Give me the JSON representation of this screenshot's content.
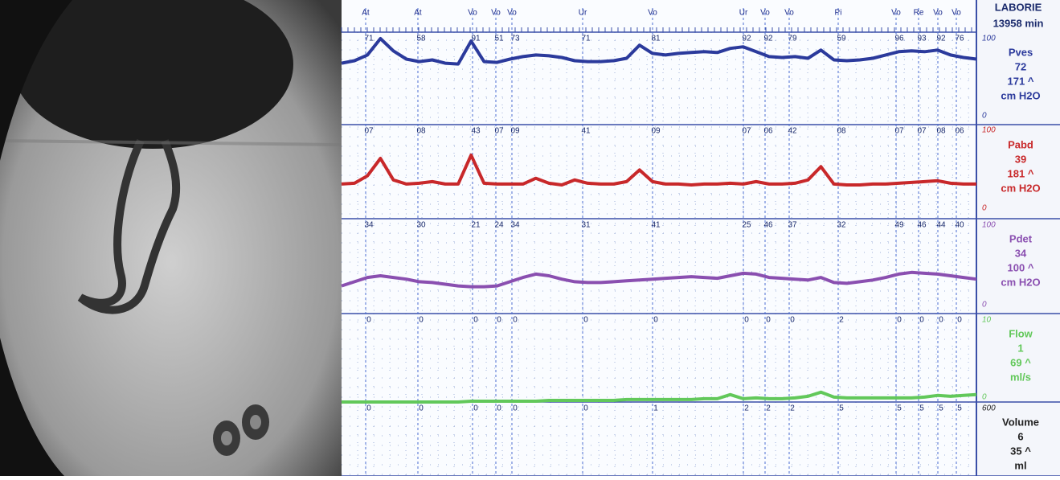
{
  "header": {
    "title": "LABORIE",
    "time": "13958 min"
  },
  "events": [
    "At",
    "At",
    "Vo",
    "Vo",
    "Vo",
    "Ur",
    "Vo",
    "Ur",
    "Vo",
    "Vo",
    "Pi",
    "Vo",
    "Re",
    "Vo",
    "Vo"
  ],
  "channels": [
    {
      "name": "Pves",
      "value": "72",
      "max": "171 ^",
      "unit": "cm H2O",
      "color": "#2b3a9c",
      "scale_top": 100,
      "scale_bottom": 0,
      "event_values": [
        "71",
        "58",
        "91",
        "51",
        "73",
        "71",
        "81",
        "92",
        "92",
        "79",
        "59",
        "96",
        "93",
        "92",
        "76"
      ],
      "trace": [
        70,
        73,
        80,
        100,
        85,
        75,
        72,
        74,
        70,
        69,
        97,
        72,
        71,
        75,
        78,
        80,
        79,
        77,
        73,
        72,
        72,
        73,
        76,
        92,
        82,
        80,
        82,
        83,
        84,
        83,
        88,
        90,
        84,
        78,
        77,
        78,
        76,
        86,
        74,
        73,
        74,
        76,
        80,
        84,
        85,
        84,
        86,
        80,
        77,
        75
      ]
    },
    {
      "name": "Pabd",
      "value": "39",
      "max": "181 ^",
      "unit": "cm H2O",
      "color": "#c8282a",
      "scale_top": 100,
      "scale_bottom": 0,
      "event_values": [
        "07",
        "08",
        "43",
        "07",
        "09",
        "41",
        "09",
        "07",
        "06",
        "42",
        "08",
        "07",
        "07",
        "08",
        "06"
      ],
      "trace": [
        35,
        36,
        45,
        66,
        40,
        35,
        36,
        38,
        35,
        35,
        70,
        36,
        35,
        35,
        35,
        42,
        36,
        34,
        40,
        36,
        35,
        35,
        38,
        52,
        38,
        35,
        35,
        34,
        35,
        35,
        36,
        35,
        38,
        35,
        35,
        36,
        40,
        56,
        35,
        34,
        34,
        35,
        35,
        36,
        37,
        38,
        39,
        36,
        35,
        35
      ]
    },
    {
      "name": "Pdet",
      "value": "34",
      "max": "100 ^",
      "unit": "cm H2O",
      "color": "#8a4fb0",
      "scale_top": 100,
      "scale_bottom": 0,
      "event_values": [
        "34",
        "30",
        "21",
        "24",
        "34",
        "31",
        "41",
        "25",
        "46",
        "37",
        "32",
        "49",
        "46",
        "44",
        "40"
      ],
      "trace": [
        28,
        33,
        38,
        40,
        38,
        36,
        33,
        32,
        30,
        28,
        27,
        27,
        28,
        33,
        38,
        42,
        40,
        36,
        33,
        32,
        32,
        33,
        34,
        35,
        36,
        37,
        38,
        39,
        38,
        37,
        40,
        43,
        42,
        38,
        37,
        36,
        35,
        38,
        32,
        31,
        33,
        35,
        38,
        42,
        44,
        43,
        42,
        40,
        38,
        36
      ]
    },
    {
      "name": "Flow",
      "value": "1",
      "max": "69 ^",
      "unit": "ml/s",
      "color": "#62c85a",
      "scale_top": 10,
      "scale_bottom": 0,
      "event_values": [
        "0",
        "0",
        "0",
        "0",
        "0",
        "0",
        "0",
        "0",
        "0",
        "0",
        "2",
        "0",
        "0",
        "0",
        "0"
      ],
      "trace": [
        0,
        0,
        0,
        0,
        0,
        0,
        0,
        0,
        0,
        0,
        0.1,
        0.1,
        0.1,
        0.1,
        0.1,
        0.1,
        0.2,
        0.2,
        0.2,
        0.2,
        0.2,
        0.2,
        0.3,
        0.3,
        0.3,
        0.3,
        0.3,
        0.3,
        0.4,
        0.4,
        0.9,
        0.4,
        0.5,
        0.4,
        0.4,
        0.5,
        0.7,
        1.2,
        0.6,
        0.5,
        0.5,
        0.5,
        0.5,
        0.5,
        0.5,
        0.6,
        0.8,
        0.7,
        0.8,
        0.9
      ]
    },
    {
      "name": "Volume",
      "value": "6",
      "max": "35 ^",
      "unit": "ml",
      "color": "#222222",
      "scale_top": 600,
      "event_values": [
        "0",
        "0",
        "0",
        "0",
        "0",
        "0",
        "1",
        "2",
        "2",
        "2",
        "5",
        "5",
        "5",
        "5",
        "5"
      ]
    }
  ]
}
